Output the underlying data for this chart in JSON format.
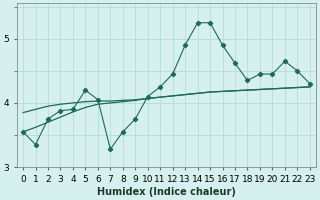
{
  "xlabel": "Humidex (Indice chaleur)",
  "background_color": "#d6f0f0",
  "grid_color": "#b0d8d0",
  "line_color": "#1a6b5a",
  "x_values": [
    0,
    1,
    2,
    3,
    4,
    5,
    6,
    7,
    8,
    9,
    10,
    11,
    12,
    13,
    14,
    15,
    16,
    17,
    18,
    19,
    20,
    21,
    22,
    23
  ],
  "y_main": [
    3.55,
    3.35,
    3.75,
    3.88,
    3.9,
    4.2,
    4.05,
    3.28,
    3.55,
    3.75,
    4.1,
    4.25,
    4.45,
    4.9,
    5.25,
    5.25,
    4.9,
    4.62,
    4.35,
    4.45,
    4.45,
    4.65,
    4.5,
    4.3
  ],
  "y_trend1": [
    3.55,
    3.62,
    3.7,
    3.78,
    3.86,
    3.93,
    3.98,
    4.0,
    4.02,
    4.04,
    4.07,
    4.09,
    4.11,
    4.13,
    4.15,
    4.17,
    4.18,
    4.19,
    4.2,
    4.21,
    4.22,
    4.23,
    4.24,
    4.25
  ],
  "y_trend2": [
    3.85,
    3.9,
    3.95,
    3.98,
    4.0,
    4.02,
    4.03,
    4.03,
    4.04,
    4.05,
    4.07,
    4.09,
    4.11,
    4.13,
    4.15,
    4.17,
    4.18,
    4.19,
    4.2,
    4.21,
    4.22,
    4.23,
    4.24,
    4.25
  ],
  "ylim": [
    3.0,
    5.55
  ],
  "xlim": [
    -0.5,
    23.5
  ],
  "yticks": [
    3,
    4,
    5
  ],
  "xticks": [
    0,
    1,
    2,
    3,
    4,
    5,
    6,
    7,
    8,
    9,
    10,
    11,
    12,
    13,
    14,
    15,
    16,
    17,
    18,
    19,
    20,
    21,
    22,
    23
  ],
  "xlabel_fontsize": 7,
  "tick_fontsize": 6.5
}
